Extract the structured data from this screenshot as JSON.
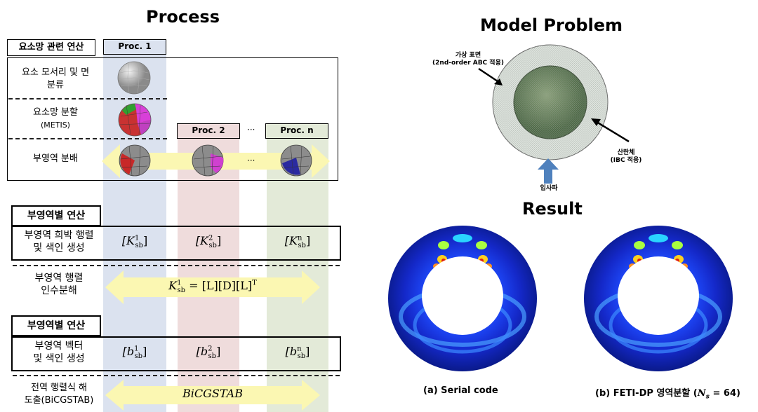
{
  "process": {
    "title": "Process",
    "mesh_header": "요소망 관련 연산",
    "proc1": "Proc. 1",
    "proc2": "Proc. 2",
    "procn": "Proc. n",
    "ellipsis": "···",
    "row_edge_face": [
      "요소 모서리 및 면",
      "분류"
    ],
    "row_partition": [
      "요소망 분할",
      "(METIS)"
    ],
    "row_distribute": "부영역 분배",
    "sub_header_1": "부영역별 연산",
    "row_sparse": [
      "부영역 희박 행렬",
      "및 색인 생성"
    ],
    "k1": "[K",
    "k_sub": "sb",
    "k1_sup": "1",
    "k2_sup": "2",
    "kn_sup": "n",
    "row_factor": [
      "부영역 행렬",
      "인수분해"
    ],
    "factor_eq": "K",
    "factor_rest": " = [L][D][L]",
    "factor_T": "T",
    "sub_header_2": "부영역별 연산",
    "row_vector": [
      "부영역 벡터",
      "및 색인 생성"
    ],
    "b": "[b",
    "row_solve": [
      "전역 행렬식 해",
      "도출(BiCGSTAB)"
    ],
    "solver": "BiCGSTAB"
  },
  "model": {
    "title": "Model Problem",
    "virtual_surface": [
      "가상 표면",
      "(2nd-order ABC 적용)"
    ],
    "scatterer": [
      "산란체",
      "(IBC 적용)"
    ],
    "incident": "입사파"
  },
  "result": {
    "title": "Result",
    "caption_a": "(a) Serial code",
    "caption_b": "(b) FETI-DP 영역분할 (",
    "caption_b_ns": "N",
    "caption_b_sub": "s",
    "caption_b_eq": " = 64)"
  },
  "colors": {
    "proc1_col": "#dbe2ef",
    "proc2_col": "#efdcdc",
    "procn_col": "#e3ead8",
    "arrow": "#fbf7b2",
    "incident_arrow": "#4f81bd"
  }
}
